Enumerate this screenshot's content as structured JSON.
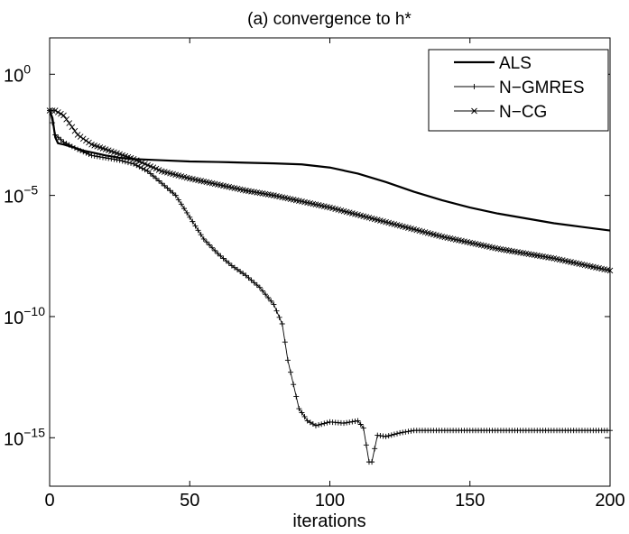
{
  "chart_data": {
    "type": "line",
    "title": "(a) convergence to h*",
    "xlabel": "iterations",
    "ylabel": "",
    "xlim": [
      0,
      200
    ],
    "ylim_log10": [
      -17,
      1.5
    ],
    "y_scale": "log",
    "grid": false,
    "legend_position": "top-right",
    "x_ticks": [
      0,
      50,
      100,
      150,
      200
    ],
    "x_tick_labels": [
      "0",
      "50",
      "100",
      "150",
      "200"
    ],
    "y_ticks_log10": [
      0,
      -5,
      -10,
      -15
    ],
    "y_tick_base": "10",
    "y_tick_exponents": [
      "0",
      "−5",
      "−10",
      "−15"
    ],
    "legend": [
      "ALS",
      "N−GMRES",
      "N−CG"
    ],
    "series": [
      {
        "name": "ALS",
        "marker": "none",
        "color": "#000000",
        "points": [
          [
            0,
            -1.5
          ],
          [
            1,
            -1.8
          ],
          [
            2,
            -2.6
          ],
          [
            3,
            -2.85
          ],
          [
            5,
            -2.9
          ],
          [
            8,
            -3.0
          ],
          [
            12,
            -3.15
          ],
          [
            16,
            -3.25
          ],
          [
            20,
            -3.35
          ],
          [
            25,
            -3.45
          ],
          [
            30,
            -3.5
          ],
          [
            40,
            -3.55
          ],
          [
            50,
            -3.6
          ],
          [
            60,
            -3.62
          ],
          [
            70,
            -3.65
          ],
          [
            80,
            -3.68
          ],
          [
            90,
            -3.72
          ],
          [
            100,
            -3.85
          ],
          [
            110,
            -4.1
          ],
          [
            120,
            -4.45
          ],
          [
            130,
            -4.85
          ],
          [
            140,
            -5.2
          ],
          [
            150,
            -5.5
          ],
          [
            160,
            -5.75
          ],
          [
            170,
            -5.95
          ],
          [
            180,
            -6.15
          ],
          [
            190,
            -6.3
          ],
          [
            200,
            -6.45
          ]
        ]
      },
      {
        "name": "N−GMRES",
        "marker": "plus",
        "color": "#000000",
        "points": [
          [
            0,
            -1.5
          ],
          [
            2,
            -2.5
          ],
          [
            5,
            -2.8
          ],
          [
            10,
            -3.1
          ],
          [
            15,
            -3.35
          ],
          [
            20,
            -3.45
          ],
          [
            25,
            -3.55
          ],
          [
            30,
            -3.7
          ],
          [
            35,
            -4.0
          ],
          [
            40,
            -4.5
          ],
          [
            45,
            -5.0
          ],
          [
            50,
            -5.9
          ],
          [
            55,
            -6.8
          ],
          [
            60,
            -7.4
          ],
          [
            65,
            -7.9
          ],
          [
            70,
            -8.3
          ],
          [
            75,
            -8.8
          ],
          [
            80,
            -9.5
          ],
          [
            83,
            -10.3
          ],
          [
            85,
            -11.8
          ],
          [
            87,
            -12.8
          ],
          [
            89,
            -13.8
          ],
          [
            92,
            -14.3
          ],
          [
            95,
            -14.5
          ],
          [
            100,
            -14.35
          ],
          [
            105,
            -14.4
          ],
          [
            110,
            -14.3
          ],
          [
            112,
            -14.6
          ],
          [
            114,
            -16.0
          ],
          [
            115,
            -16.0
          ],
          [
            117,
            -14.9
          ],
          [
            120,
            -14.95
          ],
          [
            125,
            -14.8
          ],
          [
            130,
            -14.7
          ],
          [
            140,
            -14.7
          ],
          [
            160,
            -14.7
          ],
          [
            180,
            -14.7
          ],
          [
            200,
            -14.7
          ]
        ]
      },
      {
        "name": "N−CG",
        "marker": "x",
        "color": "#000000",
        "points": [
          [
            0,
            -1.5
          ],
          [
            2,
            -1.5
          ],
          [
            5,
            -1.7
          ],
          [
            10,
            -2.5
          ],
          [
            15,
            -2.9
          ],
          [
            20,
            -3.1
          ],
          [
            25,
            -3.3
          ],
          [
            30,
            -3.5
          ],
          [
            40,
            -4.0
          ],
          [
            50,
            -4.3
          ],
          [
            60,
            -4.55
          ],
          [
            70,
            -4.8
          ],
          [
            80,
            -5.0
          ],
          [
            90,
            -5.25
          ],
          [
            100,
            -5.5
          ],
          [
            110,
            -5.8
          ],
          [
            120,
            -6.1
          ],
          [
            130,
            -6.4
          ],
          [
            140,
            -6.7
          ],
          [
            150,
            -6.95
          ],
          [
            160,
            -7.2
          ],
          [
            170,
            -7.4
          ],
          [
            180,
            -7.6
          ],
          [
            190,
            -7.85
          ],
          [
            200,
            -8.1
          ]
        ]
      }
    ]
  }
}
